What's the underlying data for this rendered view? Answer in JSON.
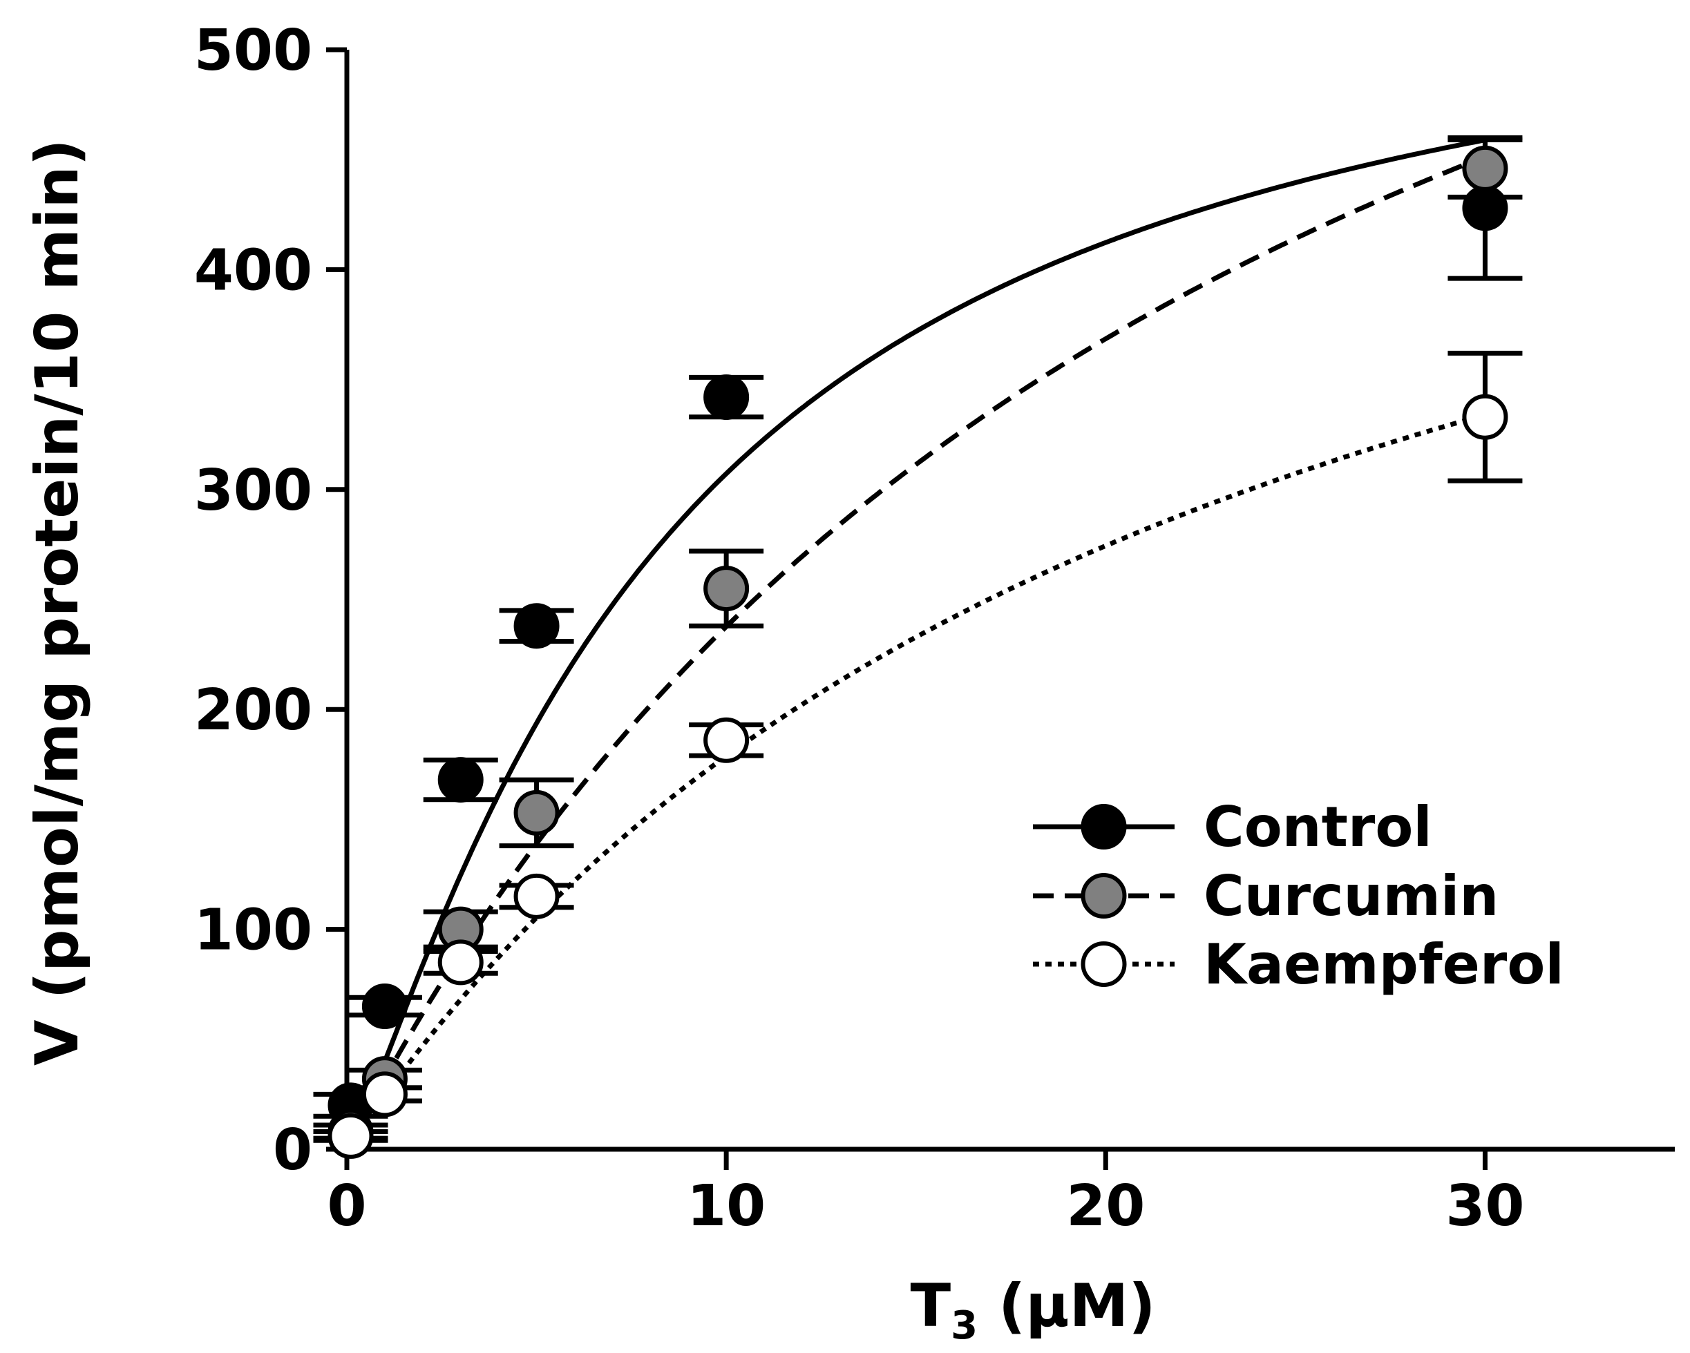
{
  "chart_data": {
    "type": "scatter",
    "title": "",
    "xlabel": {
      "main": "T",
      "sub": "3",
      "rest": " (µM)"
    },
    "ylabel": "V (pmol/mg protein/10 min)",
    "xlim": [
      0,
      35
    ],
    "ylim": [
      0,
      500
    ],
    "xticks": [
      0,
      10,
      20,
      30
    ],
    "xtick_labels": [
      "0",
      "10",
      "20",
      "30"
    ],
    "yticks": [
      0,
      100,
      200,
      300,
      400,
      500
    ],
    "ytick_labels": [
      "0",
      "100",
      "200",
      "300",
      "400",
      "500"
    ],
    "grid": false,
    "legend_position": "lower-right",
    "series": [
      {
        "name": "Control",
        "marker_color": "#000000",
        "line_style": "solid",
        "x": [
          0.1,
          1,
          3,
          5,
          10,
          30
        ],
        "y": [
          20,
          65,
          168,
          238,
          342,
          428
        ],
        "err": [
          5,
          4,
          9,
          7,
          9,
          32
        ],
        "fit_vmax": 560,
        "fit_km": 8.5,
        "fit_hill": 1.2
      },
      {
        "name": "Curcumin",
        "marker_color": "#808080",
        "line_style": "dashed",
        "x": [
          0.1,
          1,
          3,
          5,
          10,
          30
        ],
        "y": [
          8,
          32,
          100,
          153,
          255,
          446
        ],
        "err": [
          3,
          4,
          8,
          15,
          17,
          13
        ],
        "fit_vmax": 820,
        "fit_km": 24.5,
        "fit_hill": 1.0
      },
      {
        "name": "Kaempferol",
        "marker_color": "#ffffff",
        "line_style": "dotted",
        "x": [
          0.1,
          1,
          3,
          5,
          10,
          30
        ],
        "y": [
          6,
          25,
          85,
          115,
          186,
          333
        ],
        "err": [
          2,
          3,
          5,
          5,
          7,
          29
        ],
        "fit_vmax": 590,
        "fit_km": 23.0,
        "fit_hill": 1.0
      }
    ]
  }
}
